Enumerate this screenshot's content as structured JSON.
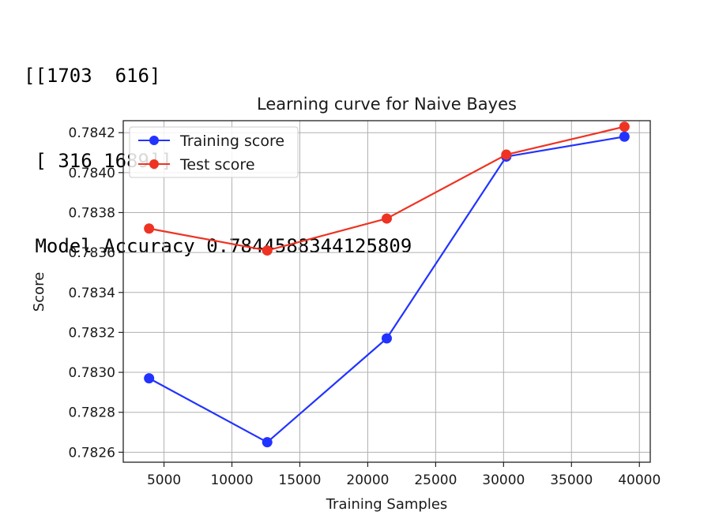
{
  "output": {
    "lines": [
      "[[1703  616]",
      " [ 316 1689]]",
      " Model Accuracy 0.7844588344125809"
    ]
  },
  "chart_data": {
    "type": "line",
    "title": "Learning curve for Naive Bayes",
    "xlabel": "Training Samples",
    "ylabel": "Score",
    "xlim": [
      2000,
      40800
    ],
    "ylim": [
      0.78255,
      0.78426
    ],
    "xticks": [
      5000,
      10000,
      15000,
      20000,
      25000,
      30000,
      35000,
      40000
    ],
    "yticks": [
      0.7826,
      0.7828,
      0.783,
      0.7832,
      0.7834,
      0.7836,
      0.7838,
      0.784,
      0.7842
    ],
    "xtick_labels": [
      "5000",
      "10000",
      "15000",
      "20000",
      "25000",
      "30000",
      "35000",
      "40000"
    ],
    "ytick_labels": [
      "0.7826",
      "0.7828",
      "0.7830",
      "0.7832",
      "0.7834",
      "0.7836",
      "0.7838",
      "0.7840",
      "0.7842"
    ],
    "grid": true,
    "legend_position": "upper-left",
    "x": [
      3900,
      12600,
      21400,
      30200,
      38900
    ],
    "series": [
      {
        "name": "Training score",
        "color": "#2233ff",
        "values": [
          0.78297,
          0.78265,
          0.78317,
          0.78408,
          0.78418
        ]
      },
      {
        "name": "Test score",
        "color": "#ee3322",
        "values": [
          0.78372,
          0.78361,
          0.78377,
          0.78409,
          0.78423
        ]
      }
    ]
  }
}
